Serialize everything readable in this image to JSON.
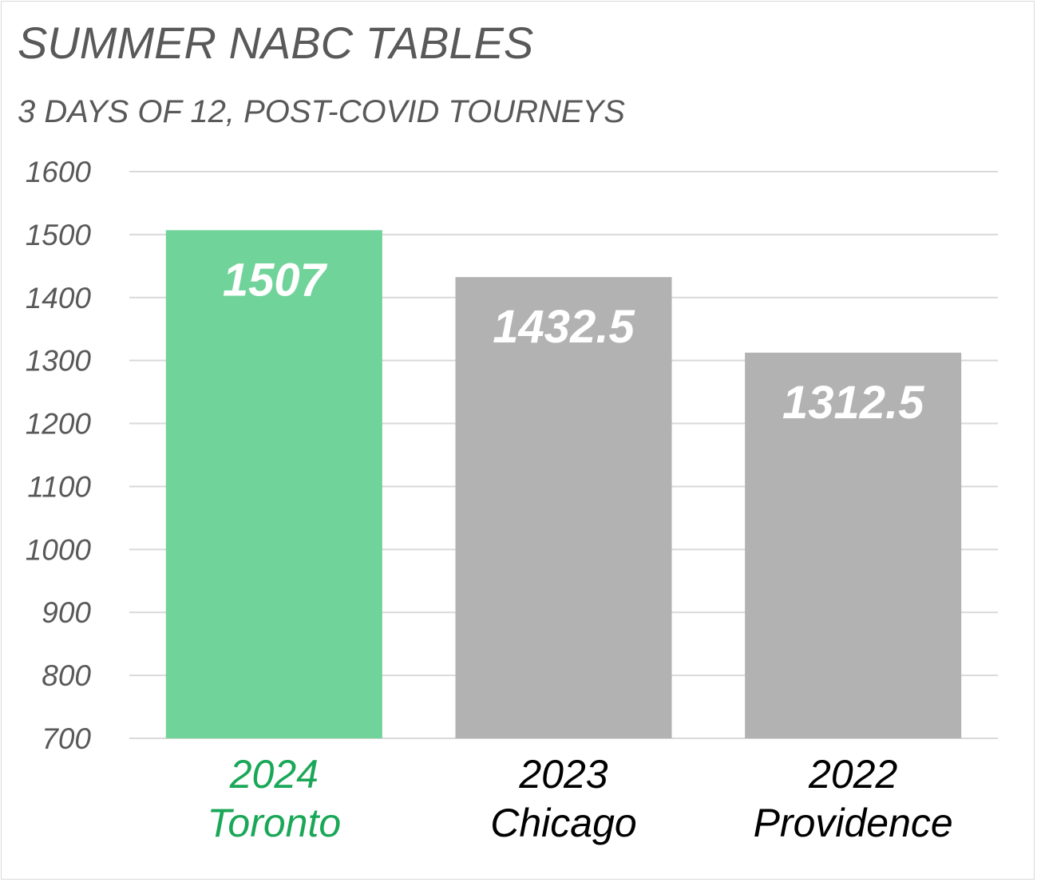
{
  "chart_data": {
    "type": "bar",
    "title": "SUMMER NABC TABLES",
    "subtitle": "3 DAYS OF 12, POST-COVID TOURNEYS",
    "categories": [
      {
        "line1": "2024",
        "line2": "Toronto"
      },
      {
        "line1": "2023",
        "line2": "Chicago"
      },
      {
        "line1": "2022",
        "line2": "Providence"
      }
    ],
    "values": [
      1507,
      1432.5,
      1312.5
    ],
    "value_labels": [
      "1507",
      "1432.5",
      "1312.5"
    ],
    "bar_colors": [
      "#70d39a",
      "#b2b2b2",
      "#b2b2b2"
    ],
    "category_label_colors": [
      "#1aa757",
      "#000000",
      "#000000"
    ],
    "ylim": [
      700,
      1600
    ],
    "yticks": [
      "700",
      "800",
      "900",
      "1000",
      "1100",
      "1200",
      "1300",
      "1400",
      "1500",
      "1600"
    ],
    "grid": true,
    "legend": "none"
  }
}
